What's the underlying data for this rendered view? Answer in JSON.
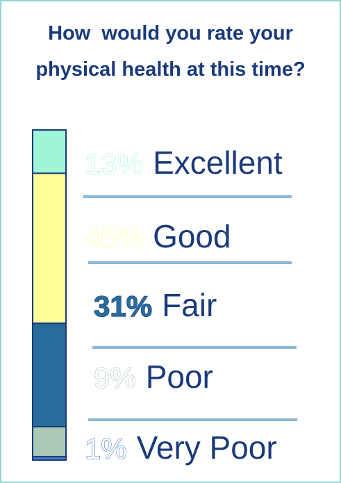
{
  "chart_data": {
    "type": "stacked_bar",
    "title": "How  would you rate your physical health at this time?",
    "categories": [
      "Excellent",
      "Good",
      "Fair",
      "Poor",
      "Very Poor"
    ],
    "values": [
      13,
      45,
      31,
      9,
      1
    ],
    "value_labels": [
      "13%",
      "45%",
      "31%",
      "9%",
      "1%"
    ],
    "colors": [
      "#9ff5d6",
      "#ffff99",
      "#286c9c",
      "#a9c9b5",
      "#4a7fc8"
    ]
  }
}
